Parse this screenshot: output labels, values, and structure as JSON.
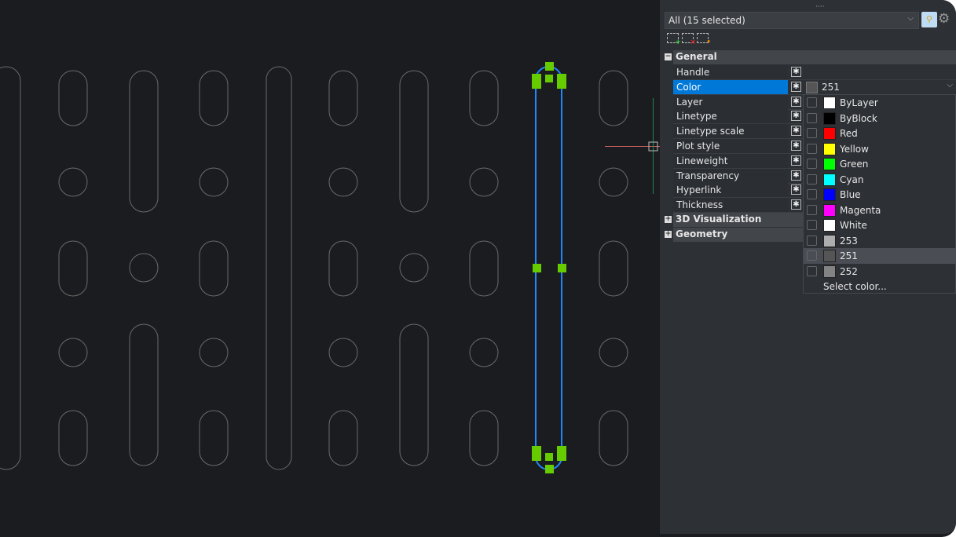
{
  "canvas": {
    "selection_color": "#1e88ff",
    "grip_color": "#66cc00"
  },
  "panel": {
    "filter": {
      "value": "All (15 selected)"
    },
    "toolbar": {
      "quick_select": "quick-select-icon",
      "settings": "gear-icon",
      "add": "add-to-selection-icon",
      "remove": "remove-from-selection-icon",
      "select": "select-objects-icon"
    },
    "sections": [
      {
        "label": "General",
        "expanded": true
      },
      {
        "label": "3D Visualization",
        "expanded": false
      },
      {
        "label": "Geometry",
        "expanded": false
      }
    ],
    "properties": [
      {
        "label": "Handle",
        "value": ""
      },
      {
        "label": "Color",
        "value": "251",
        "swatch": "#555555"
      },
      {
        "label": "Layer"
      },
      {
        "label": "Linetype"
      },
      {
        "label": "Linetype scale"
      },
      {
        "label": "Plot style"
      },
      {
        "label": "Lineweight"
      },
      {
        "label": "Transparency"
      },
      {
        "label": "Hyperlink"
      },
      {
        "label": "Thickness"
      }
    ],
    "color_dropdown": {
      "options": [
        {
          "label": "ByLayer",
          "color": "#ffffff"
        },
        {
          "label": "ByBlock",
          "color": "#000000"
        },
        {
          "label": "Red",
          "color": "#ff0000"
        },
        {
          "label": "Yellow",
          "color": "#ffff00"
        },
        {
          "label": "Green",
          "color": "#00ff00"
        },
        {
          "label": "Cyan",
          "color": "#00ffff"
        },
        {
          "label": "Blue",
          "color": "#0000ff"
        },
        {
          "label": "Magenta",
          "color": "#ff00ff"
        },
        {
          "label": "White",
          "color": "#ffffff"
        },
        {
          "label": "253",
          "color": "#adadad"
        },
        {
          "label": "251",
          "color": "#555555",
          "highlighted": true
        },
        {
          "label": "252",
          "color": "#838383"
        }
      ],
      "select_color": "Select color..."
    }
  }
}
